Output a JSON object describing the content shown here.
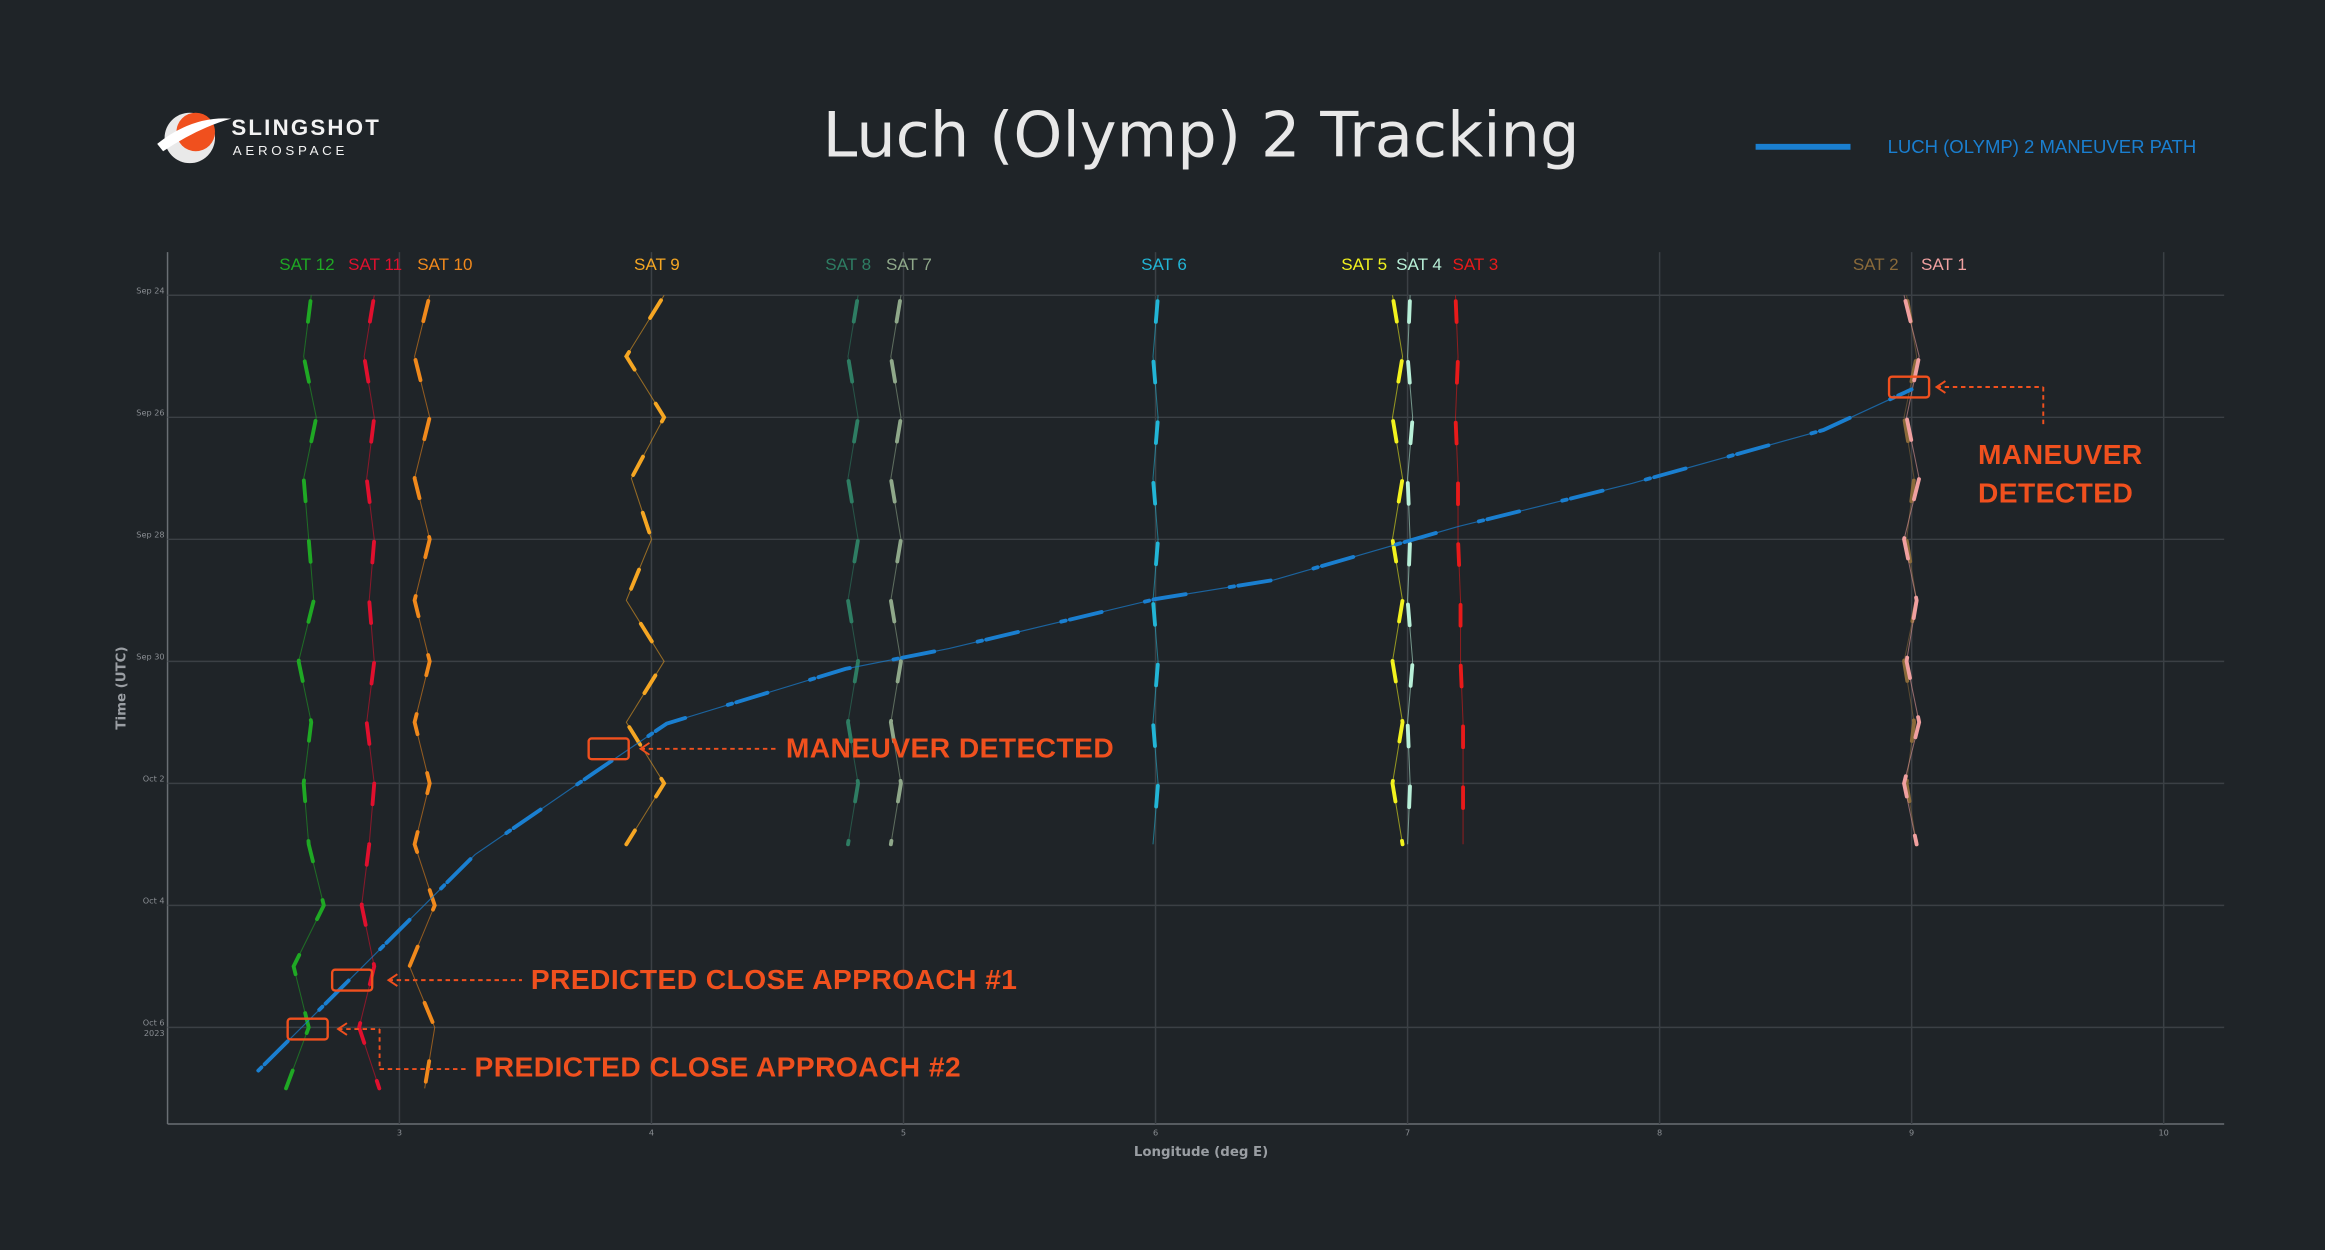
{
  "logo": {
    "name": "SLINGSHOT",
    "sub": "AEROSPACE"
  },
  "chart_data": {
    "type": "line",
    "title": "Luch (Olymp) 2 Tracking",
    "xlabel": "Longitude (deg E)",
    "ylabel": "Time (UTC)",
    "xlim": [
      2.08,
      10.24
    ],
    "xticks": [
      3,
      4,
      5,
      6,
      7,
      8,
      9,
      10
    ],
    "ylim": [
      "2023-09-23T07:00Z",
      "2023-10-07T14:00Z"
    ],
    "yinverted": true,
    "yticks": [
      {
        "value": "2023-09-24",
        "label": [
          "Sep 24"
        ]
      },
      {
        "value": "2023-09-26",
        "label": [
          "Sep 26"
        ]
      },
      {
        "value": "2023-09-28",
        "label": [
          "Sep 28"
        ]
      },
      {
        "value": "2023-09-30",
        "label": [
          "Sep 30"
        ]
      },
      {
        "value": "2023-10-02",
        "label": [
          "Oct 2"
        ]
      },
      {
        "value": "2023-10-04",
        "label": [
          "Oct 4"
        ]
      },
      {
        "value": "2023-10-06",
        "label": [
          "Oct 6",
          "2023"
        ]
      }
    ],
    "grid": true,
    "legend": "upper right",
    "series": [
      {
        "name": "LUCH (OLYMP) 2 MANEUVER PATH",
        "color": "#1a7fd0",
        "x": [
          2.44,
          3.3,
          3.77,
          4.06,
          4.77,
          5.18,
          6.0,
          6.47,
          7.2,
          7.89,
          8.65,
          9.0
        ],
        "y": [
          "2023-10-06T17:00Z",
          "2023-10-03T04:00Z",
          "2023-10-01T20:00Z",
          "2023-10-01T00:30Z",
          "2023-09-30T03:00Z",
          "2023-09-29T19:00Z",
          "2023-09-28T23:30Z",
          "2023-09-28T16:00Z",
          "2023-09-27T19:00Z",
          "2023-09-27T02:00Z",
          "2023-09-26T05:00Z",
          "2023-09-25T13:00Z"
        ]
      }
    ],
    "satellites": [
      {
        "name": "SAT 12",
        "color": "#1fa824",
        "x": [
          2.65,
          2.62,
          2.67,
          2.62,
          2.64,
          2.66,
          2.6,
          2.65,
          2.62,
          2.64,
          2.7,
          2.58,
          2.64,
          2.55
        ],
        "y": [
          "2023-09-24",
          "2023-09-25",
          "2023-09-26",
          "2023-09-27",
          "2023-09-28",
          "2023-09-29",
          "2023-09-30",
          "2023-10-01",
          "2023-10-02",
          "2023-10-03",
          "2023-10-04",
          "2023-10-05",
          "2023-10-06",
          "2023-10-07"
        ]
      },
      {
        "name": "SAT 11",
        "color": "#e0102e",
        "x": [
          2.9,
          2.86,
          2.9,
          2.87,
          2.9,
          2.88,
          2.9,
          2.87,
          2.9,
          2.88,
          2.85,
          2.9,
          2.84,
          2.92
        ],
        "y": [
          "2023-09-24",
          "2023-09-25",
          "2023-09-26",
          "2023-09-27",
          "2023-09-28",
          "2023-09-29",
          "2023-09-30",
          "2023-10-01",
          "2023-10-02",
          "2023-10-03",
          "2023-10-04",
          "2023-10-05",
          "2023-10-06",
          "2023-10-07"
        ]
      },
      {
        "name": "SAT 10",
        "color": "#f0891c",
        "x": [
          3.12,
          3.06,
          3.12,
          3.06,
          3.12,
          3.06,
          3.12,
          3.06,
          3.12,
          3.06,
          3.14,
          3.04,
          3.14,
          3.1
        ],
        "y": [
          "2023-09-24",
          "2023-09-25",
          "2023-09-26",
          "2023-09-27",
          "2023-09-28",
          "2023-09-29",
          "2023-09-30",
          "2023-10-01",
          "2023-10-02",
          "2023-10-03",
          "2023-10-04",
          "2023-10-05",
          "2023-10-06",
          "2023-10-07"
        ]
      },
      {
        "name": "SAT 9",
        "color": "#f5a623",
        "x": [
          4.05,
          3.9,
          4.05,
          3.92,
          4.0,
          3.9,
          4.05,
          3.9,
          4.05,
          3.9
        ],
        "y": [
          "2023-09-24",
          "2023-09-25",
          "2023-09-26",
          "2023-09-27",
          "2023-09-28",
          "2023-09-29",
          "2023-09-30",
          "2023-10-01",
          "2023-10-02",
          "2023-10-03"
        ]
      },
      {
        "name": "SAT 8",
        "color": "#2e7d63",
        "x": [
          4.82,
          4.78,
          4.82,
          4.78,
          4.82,
          4.78,
          4.82,
          4.78,
          4.82,
          4.78
        ],
        "y": [
          "2023-09-24",
          "2023-09-25",
          "2023-09-26",
          "2023-09-27",
          "2023-09-28",
          "2023-09-29",
          "2023-09-30",
          "2023-10-01",
          "2023-10-02",
          "2023-10-03"
        ]
      },
      {
        "name": "SAT 7",
        "color": "#8fa88a",
        "x": [
          4.99,
          4.95,
          4.99,
          4.95,
          4.99,
          4.95,
          4.99,
          4.95,
          4.99,
          4.95
        ],
        "y": [
          "2023-09-24",
          "2023-09-25",
          "2023-09-26",
          "2023-09-27",
          "2023-09-28",
          "2023-09-29",
          "2023-09-30",
          "2023-10-01",
          "2023-10-02",
          "2023-10-03"
        ]
      },
      {
        "name": "SAT 6",
        "color": "#22b5d6",
        "x": [
          6.01,
          5.99,
          6.01,
          5.99,
          6.01,
          5.99,
          6.01,
          5.99,
          6.01,
          5.99
        ],
        "y": [
          "2023-09-24",
          "2023-09-25",
          "2023-09-26",
          "2023-09-27",
          "2023-09-28",
          "2023-09-29",
          "2023-09-30",
          "2023-10-01",
          "2023-10-02",
          "2023-10-03"
        ]
      },
      {
        "name": "SAT 5",
        "color": "#f2f21e",
        "x": [
          6.94,
          6.98,
          6.94,
          6.98,
          6.94,
          6.98,
          6.94,
          6.98,
          6.94,
          6.98
        ],
        "y": [
          "2023-09-24",
          "2023-09-25",
          "2023-09-26",
          "2023-09-27",
          "2023-09-28",
          "2023-09-29",
          "2023-09-30",
          "2023-10-01",
          "2023-10-02",
          "2023-10-03"
        ]
      },
      {
        "name": "SAT 4",
        "color": "#b8f0d8",
        "x": [
          7.01,
          7.0,
          7.02,
          7.0,
          7.01,
          7.0,
          7.02,
          7.0,
          7.01,
          7.0
        ],
        "y": [
          "2023-09-24",
          "2023-09-25",
          "2023-09-26",
          "2023-09-27",
          "2023-09-28",
          "2023-09-29",
          "2023-09-30",
          "2023-10-01",
          "2023-10-02",
          "2023-10-03"
        ]
      },
      {
        "name": "SAT 3",
        "color": "#e81a1a",
        "x": [
          7.19,
          7.2,
          7.19,
          7.2,
          7.2,
          7.21,
          7.21,
          7.22,
          7.22,
          7.22
        ],
        "y": [
          "2023-09-24",
          "2023-09-25",
          "2023-09-26",
          "2023-09-27",
          "2023-09-28",
          "2023-09-29",
          "2023-09-30",
          "2023-10-01",
          "2023-10-02",
          "2023-10-03"
        ]
      },
      {
        "name": "SAT 2",
        "color": "#8a6a3a",
        "x": [
          8.98,
          9.02,
          8.97,
          9.01,
          8.98,
          9.02,
          8.97,
          9.01,
          8.98,
          9.02
        ],
        "y": [
          "2023-09-24",
          "2023-09-25",
          "2023-09-26",
          "2023-09-27",
          "2023-09-28",
          "2023-09-29",
          "2023-09-30",
          "2023-10-01",
          "2023-10-02",
          "2023-10-03"
        ]
      },
      {
        "name": "SAT 1",
        "color": "#f0a0a0",
        "x": [
          8.97,
          9.03,
          8.98,
          9.03,
          8.97,
          9.02,
          8.98,
          9.03,
          8.97,
          9.02
        ],
        "y": [
          "2023-09-24",
          "2023-09-25",
          "2023-09-26",
          "2023-09-27",
          "2023-09-28",
          "2023-09-29",
          "2023-09-30",
          "2023-10-01",
          "2023-10-02",
          "2023-10-03"
        ]
      }
    ],
    "annotations": [
      {
        "text": [
          "MANEUVER DETECTED"
        ]
      },
      {
        "text": [
          "MANEUVER",
          "DETECTED"
        ]
      },
      {
        "text": [
          "PREDICTED CLOSE APPROACH #1"
        ]
      },
      {
        "text": [
          "PREDICTED CLOSE APPROACH #2"
        ]
      }
    ]
  }
}
